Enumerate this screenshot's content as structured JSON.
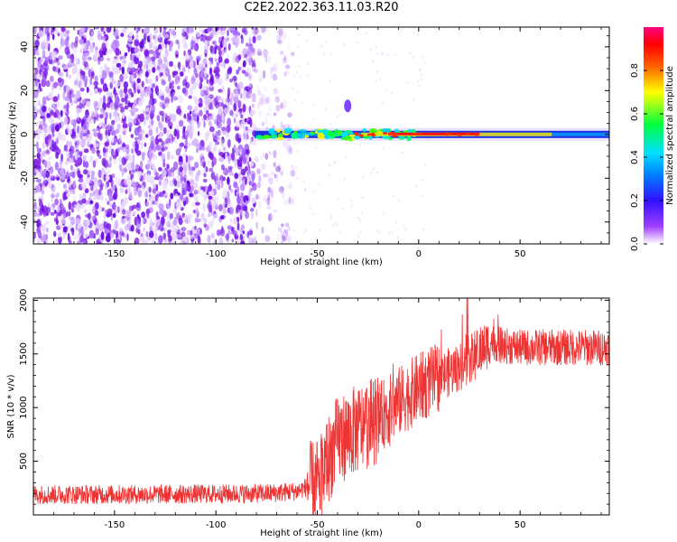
{
  "title": "C2E2.2022.363.11.03.R20",
  "chart_data": [
    {
      "type": "heatmap",
      "xlabel": "Height of straight line (km)",
      "ylabel": "Frequency (Hz)",
      "xlim": [
        -190,
        94
      ],
      "ylim": [
        -50,
        49
      ],
      "xticks": [
        -150,
        -100,
        -50,
        0,
        50
      ],
      "yticks": [
        -40,
        -20,
        0,
        20,
        40
      ],
      "colorbar": {
        "label": "Normalized spectral amplitude",
        "range": [
          0,
          1
        ],
        "ticks": [
          0.0,
          0.2,
          0.4,
          0.6,
          0.8
        ],
        "colormap": "rainbow (white -> violet -> blue -> cyan -> green -> yellow -> red -> magenta)"
      },
      "features": {
        "noise_region_x": [
          -190,
          -62
        ],
        "noise_color": "#8a2be2",
        "ridge_start_x": -81,
        "ridge_frequency": 0,
        "ridge_peak_region_x": [
          -15,
          30
        ],
        "side_blob": {
          "x": -35,
          "frequency": 13
        }
      }
    },
    {
      "type": "line",
      "xlabel": "Height of straight line (km)",
      "ylabel": "SNR (10 * v/v)",
      "xlim": [
        -190,
        94
      ],
      "ylim": [
        0,
        2020
      ],
      "xticks": [
        -150,
        -100,
        -50,
        0,
        50
      ],
      "yticks": [
        500,
        1000,
        1500,
        2000
      ],
      "color": "#ee3333",
      "series": [
        {
          "name": "",
          "trend": [
            [
              -190,
              190
            ],
            [
              -150,
              190
            ],
            [
              -100,
              195
            ],
            [
              -75,
              200
            ],
            [
              -60,
              220
            ],
            [
              -50,
              300
            ],
            [
              -45,
              500
            ],
            [
              -40,
              700
            ],
            [
              -30,
              800
            ],
            [
              -20,
              900
            ],
            [
              -10,
              1050
            ],
            [
              0,
              1180
            ],
            [
              10,
              1280
            ],
            [
              20,
              1380
            ],
            [
              30,
              1520
            ],
            [
              36,
              1620
            ],
            [
              40,
              1580
            ],
            [
              50,
              1560
            ],
            [
              70,
              1560
            ],
            [
              94,
              1560
            ]
          ],
          "peak_max": 2020
        }
      ]
    }
  ]
}
